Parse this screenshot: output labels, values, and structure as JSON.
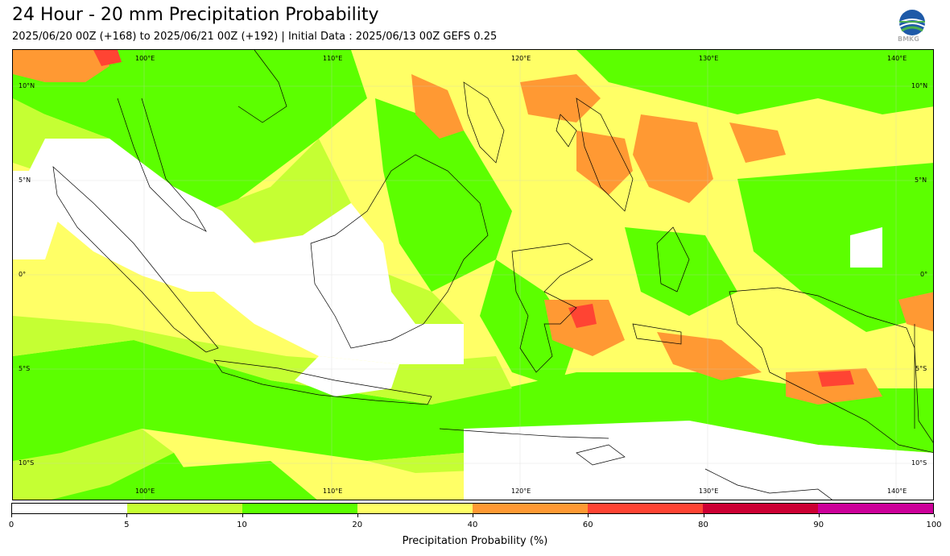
{
  "header": {
    "title": "24 Hour - 20 mm Precipitation Probability",
    "subtitle": "2025/06/20 00Z (+168) to 2025/06/21 00Z (+192) | Initial Data : 2025/06/13 00Z GEFS 0.25",
    "logo_text": "BMKG"
  },
  "map": {
    "lon_labels": [
      "100°E",
      "110°E",
      "120°E",
      "130°E",
      "140°E"
    ],
    "lat_labels": [
      "10°N",
      "5°N",
      "0°",
      "5°S",
      "10°S"
    ]
  },
  "colorbar": {
    "label": "Precipitation Probability (%)",
    "ticks": [
      "0",
      "5",
      "10",
      "20",
      "40",
      "60",
      "80",
      "90",
      "100"
    ],
    "colors": [
      "#ffffff",
      "#c5ff33",
      "#5cff00",
      "#ffff66",
      "#ff9933",
      "#ff4433",
      "#cc0033",
      "#cc0099"
    ]
  }
}
